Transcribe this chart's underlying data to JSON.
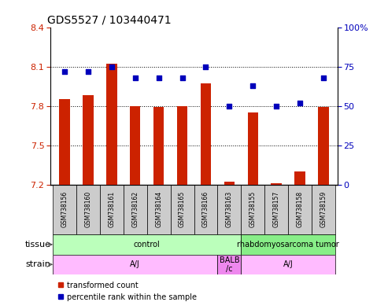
{
  "title": "GDS5527 / 103440471",
  "samples": [
    "GSM738156",
    "GSM738160",
    "GSM738161",
    "GSM738162",
    "GSM738164",
    "GSM738165",
    "GSM738166",
    "GSM738163",
    "GSM738155",
    "GSM738157",
    "GSM738158",
    "GSM738159"
  ],
  "bar_values": [
    7.85,
    7.88,
    8.12,
    7.8,
    7.79,
    7.8,
    7.97,
    7.22,
    7.75,
    7.21,
    7.3,
    7.79
  ],
  "scatter_values": [
    72,
    72,
    75,
    68,
    68,
    68,
    75,
    50,
    63,
    50,
    52,
    68
  ],
  "ylim_left": [
    7.2,
    8.4
  ],
  "ylim_right": [
    0,
    100
  ],
  "yticks_left": [
    7.2,
    7.5,
    7.8,
    8.1,
    8.4
  ],
  "yticks_right": [
    0,
    25,
    50,
    75,
    100
  ],
  "bar_color": "#cc2200",
  "scatter_color": "#0000bb",
  "tissue_data": [
    {
      "text": "control",
      "start": 0,
      "end": 8,
      "color": "#bbffbb"
    },
    {
      "text": "rhabdomyosarcoma tumor",
      "start": 8,
      "end": 12,
      "color": "#88ee88"
    }
  ],
  "strain_data": [
    {
      "text": "A/J",
      "start": 0,
      "end": 7,
      "color": "#ffbbff"
    },
    {
      "text": "BALB\n/c",
      "start": 7,
      "end": 8,
      "color": "#ee88ee"
    },
    {
      "text": "A/J",
      "start": 8,
      "end": 12,
      "color": "#ffbbff"
    }
  ],
  "legend_items": [
    {
      "label": "transformed count",
      "color": "#cc2200"
    },
    {
      "label": "percentile rank within the sample",
      "color": "#0000bb"
    }
  ],
  "bar_bottom": 7.2,
  "sample_cell_color": "#cccccc",
  "figsize": [
    4.93,
    3.84
  ],
  "dpi": 100
}
